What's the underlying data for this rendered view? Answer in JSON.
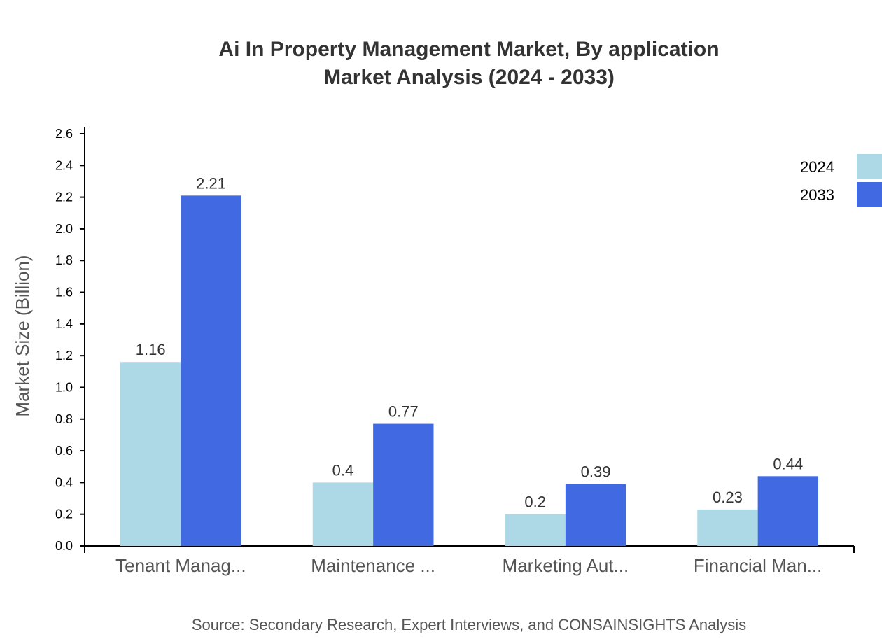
{
  "chart_data": {
    "type": "bar",
    "title": "Ai In Property Management Market, By application",
    "subtitle": "Market Analysis (2024 - 2033)",
    "xlabel": "",
    "ylabel": "Market Size (Billion)",
    "ylim": [
      0,
      2.6
    ],
    "yticks": [
      "0.0",
      "0.2",
      "0.4",
      "0.6",
      "0.8",
      "1.0",
      "1.2",
      "1.4",
      "1.6",
      "1.8",
      "2.0",
      "2.2",
      "2.4",
      "2.6"
    ],
    "categories": [
      "Tenant Manag...",
      "Maintenance ...",
      "Marketing Aut...",
      "Financial Man..."
    ],
    "series": [
      {
        "name": "2024",
        "color": "#ADD8E6",
        "values": [
          1.16,
          0.4,
          0.2,
          0.23
        ]
      },
      {
        "name": "2033",
        "color": "#4169E1",
        "values": [
          2.21,
          0.77,
          0.39,
          0.44
        ]
      }
    ],
    "legend_position": "top-right",
    "grid": false,
    "source": "Source: Secondary Research, Expert Interviews, and CONSAINSIGHTS Analysis"
  }
}
